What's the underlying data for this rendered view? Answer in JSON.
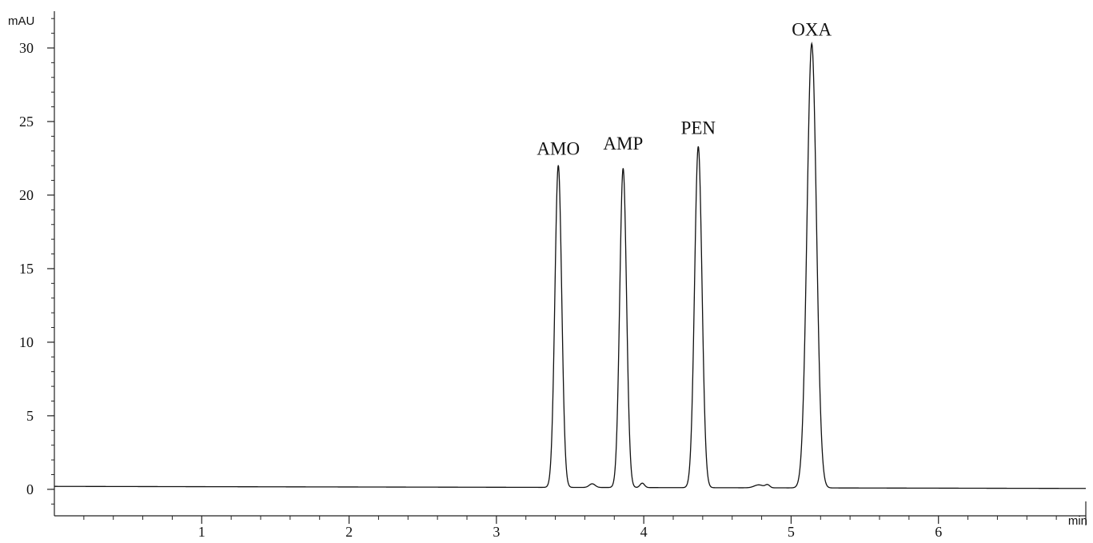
{
  "chart_data": {
    "type": "line",
    "ylabel": "mAU",
    "xlabel": "min",
    "xlim": [
      0,
      7.0
    ],
    "ylim": [
      -1.8,
      32.5
    ],
    "x_ticks": [
      1,
      2,
      3,
      4,
      5,
      6
    ],
    "y_ticks": [
      0,
      5,
      10,
      15,
      20,
      25,
      30
    ],
    "grid": false,
    "baseline": 0.2,
    "peaks": [
      {
        "name": "AMO",
        "x": 3.42,
        "y": 22.1,
        "width": 0.023
      },
      {
        "name": "AMP",
        "x": 3.86,
        "y": 21.9,
        "width": 0.023
      },
      {
        "name": "PEN",
        "x": 4.37,
        "y": 23.4,
        "width": 0.025
      },
      {
        "name": "OXA",
        "x": 5.14,
        "y": 30.4,
        "width": 0.032
      }
    ]
  }
}
